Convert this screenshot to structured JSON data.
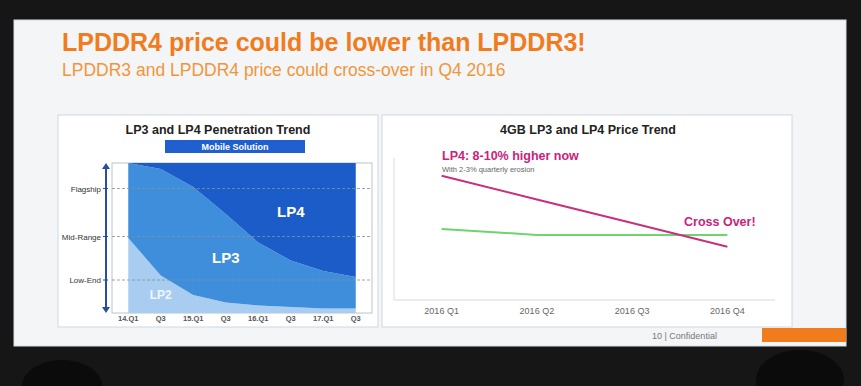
{
  "slide": {
    "title": "LPDDR4 price could be lower than LPDDR3!",
    "subtitle": "LPDDR3 and LPDDR4 price could cross-over in Q4 2016",
    "footer": "10 | Confidential"
  },
  "chart_data": [
    {
      "type": "area",
      "title": "LP3 and LP4 Penetration Trend",
      "subtitle": "Mobile Solution",
      "categories": [
        "14.Q1",
        "Q3",
        "15.Q1",
        "Q3",
        "16.Q1",
        "Q3",
        "17.Q1",
        "Q3"
      ],
      "stacked": true,
      "grid": true,
      "ylim": [
        0,
        100
      ],
      "yticks": [
        {
          "value": 22,
          "label": "Low-End"
        },
        {
          "value": 51,
          "label": "Mid-Range"
        },
        {
          "value": 83,
          "label": "Flagship"
        }
      ],
      "series": [
        {
          "name": "LP2",
          "color": "#a9cdf0",
          "values": [
            50,
            25,
            12,
            7,
            5,
            4,
            3,
            3
          ]
        },
        {
          "name": "LP3",
          "color": "#3f8edc",
          "values": [
            50,
            71,
            72,
            59,
            42,
            31,
            25,
            21
          ]
        },
        {
          "name": "LP4",
          "color": "#1b5cc8",
          "values": [
            0,
            4,
            16,
            34,
            53,
            65,
            72,
            76
          ]
        }
      ]
    },
    {
      "type": "line",
      "title": "4GB LP3 and LP4 Price Trend",
      "categories": [
        "2016 Q1",
        "2016 Q2",
        "2016 Q3",
        "2016 Q4"
      ],
      "ylim": [
        88,
        112
      ],
      "tick_labels": "x",
      "series": [
        {
          "color": "#6fd36f",
          "values": [
            100,
            99,
            99,
            99
          ]
        },
        {
          "color": "#c8307c",
          "values": [
            109,
            105,
            101,
            97
          ]
        }
      ],
      "annotations": [
        {
          "text": "LP4: 8-10% higher now",
          "color": "#c8237d"
        },
        {
          "text": "With 2-3% quarterly erosion"
        },
        {
          "text": "Cross Over!",
          "color": "#c8237d"
        }
      ]
    }
  ]
}
